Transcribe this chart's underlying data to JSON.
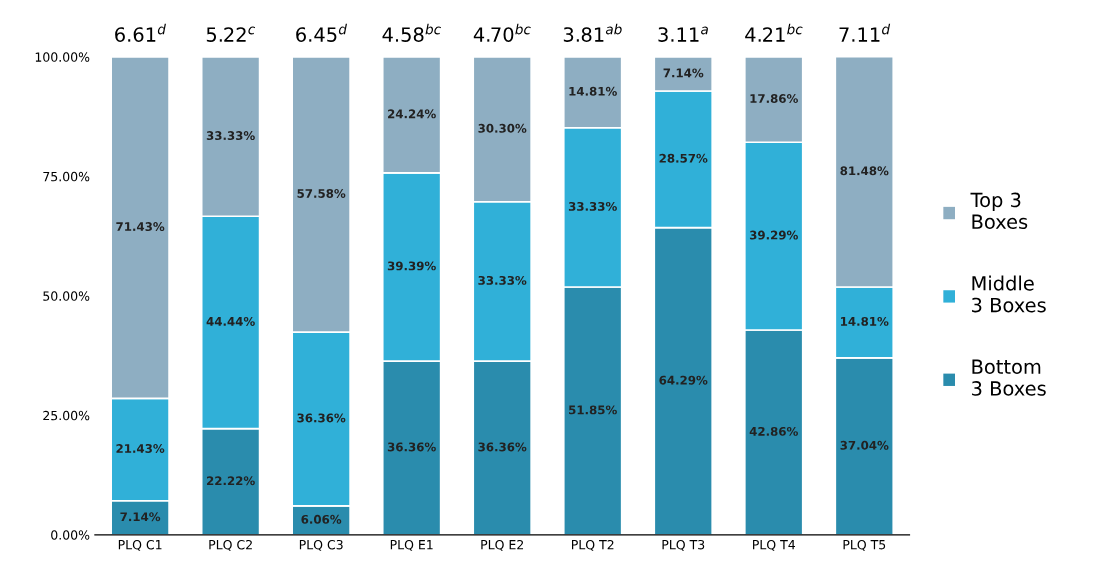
{
  "chart_data": {
    "type": "bar",
    "stacked": true,
    "categories": [
      "PLQ C1",
      "PLQ C2",
      "PLQ C3",
      "PLQ E1",
      "PLQ E2",
      "PLQ T2",
      "PLQ T3",
      "PLQ T4",
      "PLQ T5"
    ],
    "series": [
      {
        "name": "Bottom\n3 Boxes",
        "color": "#2a8cad",
        "values": [
          7.14,
          22.22,
          6.06,
          36.36,
          36.36,
          51.85,
          64.29,
          42.86,
          37.04
        ],
        "value_labels": [
          "7.14%",
          "22.22%",
          "6.06%",
          "36.36%",
          "36.36%",
          "51.85%",
          "64.29%",
          "42.86%",
          "37.04%"
        ]
      },
      {
        "name": "Middle\n3 Boxes",
        "color": "#30b0d8",
        "values": [
          21.43,
          44.44,
          36.36,
          39.39,
          33.33,
          33.33,
          28.57,
          39.29,
          14.81
        ],
        "value_labels": [
          "21.43%",
          "44.44%",
          "36.36%",
          "39.39%",
          "33.33%",
          "33.33%",
          "28.57%",
          "39.29%",
          "14.81%"
        ]
      },
      {
        "name": "Top 3\nBoxes",
        "color": "#8eaec2",
        "values": [
          71.43,
          33.33,
          57.58,
          24.24,
          30.3,
          14.81,
          7.14,
          17.86,
          48.2
        ],
        "value_labels": [
          "71.43%",
          "33.33%",
          "57.58%",
          "24.24%",
          "30.30%",
          "14.81%",
          "7.14%",
          "17.86%",
          null
        ]
      }
    ],
    "ylim": [
      0,
      100
    ],
    "yticks": [
      {
        "value": 0,
        "label": "0.00%"
      },
      {
        "value": 25,
        "label": "25.00%"
      },
      {
        "value": 50,
        "label": "50.00%"
      },
      {
        "value": 75,
        "label": "75.00%"
      },
      {
        "value": 100,
        "label": "100.00%"
      }
    ],
    "grid": false,
    "legend": "right",
    "annotations": [
      {
        "text": "6.61$^{d}$",
        "x": "PLQ C1",
        "y": 100
      },
      {
        "text": "5.22$^{c}$",
        "x": "PLQ C2",
        "y": 100
      },
      {
        "text": "6.45$^{d}$",
        "x": "PLQ C3",
        "y": 100
      },
      {
        "text": "4.58$^{bc}$",
        "x": "PLQ E1",
        "y": 100
      },
      {
        "text": "4.70$^{bc}$",
        "x": "PLQ E2",
        "y": 100
      },
      {
        "text": "3.81$^{ab}$",
        "x": "PLQ T2",
        "y": 100
      },
      {
        "text": "3.11$^{a}$",
        "x": "PLQ T3",
        "y": 100
      },
      {
        "text": "4.21$^{bc}$",
        "x": "PLQ T4",
        "y": 100
      },
      {
        "text": "7.11$^{d}$",
        "x": "PLQ T5",
        "y": 100
      },
      "81.48%"
    ]
  }
}
